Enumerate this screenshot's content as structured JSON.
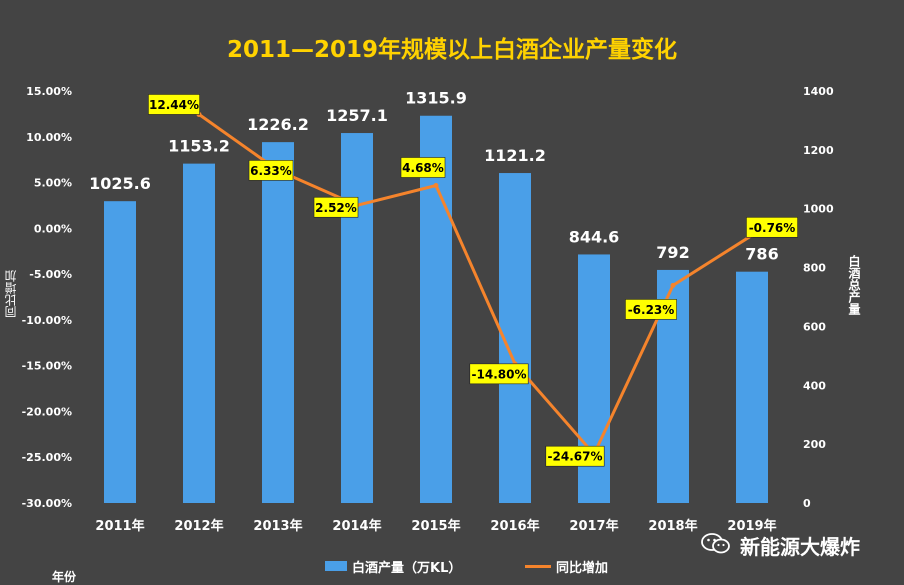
{
  "chart_data": {
    "type": "bar+line",
    "title": "2011—2019年规模以上白酒企业产量变化",
    "categories": [
      "2011年",
      "2012年",
      "2013年",
      "2014年",
      "2015年",
      "2016年",
      "2017年",
      "2018年",
      "2019年"
    ],
    "series": [
      {
        "name": "白酒产量（万KL）",
        "type": "bar",
        "axis": "right",
        "values": [
          1025.6,
          1153.2,
          1226.2,
          1257.1,
          1315.9,
          1121.2,
          844.6,
          792,
          786
        ],
        "labels": [
          "1025.6",
          "1153.2",
          "1226.2",
          "1257.1",
          "1315.9",
          "1121.2",
          "844.6",
          "792",
          "786"
        ]
      },
      {
        "name": "同比增加",
        "type": "line",
        "axis": "left",
        "values": [
          null,
          12.44,
          6.33,
          2.52,
          4.68,
          -14.8,
          -24.67,
          -6.23,
          -0.76
        ],
        "labels": [
          "",
          "12.44%",
          "6.33%",
          "2.52%",
          "4.68%",
          "-14.80%",
          "-24.67%",
          "-6.23%",
          "-0.76%"
        ]
      }
    ],
    "y_left": {
      "title": "同比增加",
      "min": -30,
      "max": 15,
      "step": 5,
      "ticks": [
        "15.00%",
        "10.00%",
        "5.00%",
        "0.00%",
        "-5.00%",
        "-10.00%",
        "-15.00%",
        "-20.00%",
        "-25.00%",
        "-30.00%"
      ]
    },
    "y_right": {
      "title": "白酒总产量",
      "min": 0,
      "max": 1400,
      "step": 200,
      "ticks": [
        "1400",
        "1200",
        "1000",
        "800",
        "600",
        "400",
        "200",
        "0"
      ]
    },
    "x_title": "年份",
    "legend_position": "bottom",
    "grid": false
  },
  "watermark": "新能源大爆炸",
  "colors": {
    "bar": "#4A9FE8",
    "line": "#F5842C",
    "title": "#FFD200",
    "label_box": "#FFFF00",
    "background": "#444444"
  }
}
